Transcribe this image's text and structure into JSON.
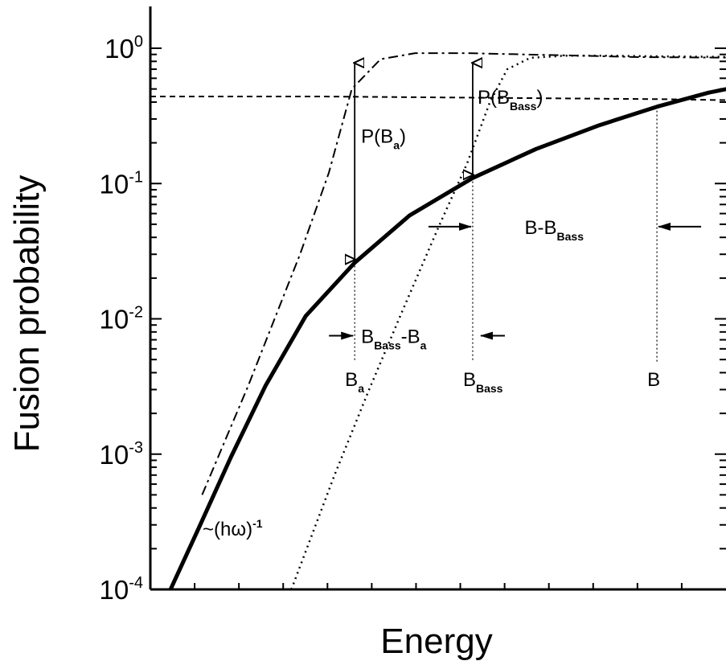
{
  "chart_data": {
    "type": "line",
    "xlabel": "Energy",
    "ylabel": "Fusion probability",
    "x_scale": "arbitrary",
    "y_scale": "log",
    "ylim": [
      0.0001,
      1
    ],
    "xlim": [
      0,
      100
    ],
    "grid": false,
    "y_ticks": [
      {
        "base": "10",
        "exp": "-4",
        "value": 0.0001
      },
      {
        "base": "10",
        "exp": "-3",
        "value": 0.001
      },
      {
        "base": "10",
        "exp": "-2",
        "value": 0.01
      },
      {
        "base": "10",
        "exp": "-1",
        "value": 0.1
      },
      {
        "base": "10",
        "exp": "0",
        "value": 1
      }
    ],
    "series": [
      {
        "style": "solid",
        "x": [
          3.5,
          8.5,
          14,
          20,
          27,
          35.5,
          45,
          56,
          67,
          78,
          88,
          97,
          105
        ],
        "y": [
          0.0001,
          0.00029,
          0.00095,
          0.0032,
          0.0105,
          0.026,
          0.058,
          0.11,
          0.18,
          0.27,
          0.37,
          0.47,
          0.55
        ]
      },
      {
        "style": "dash-dot",
        "x": [
          9,
          17,
          26,
          31,
          35,
          40,
          46,
          55,
          65,
          75,
          85,
          105
        ],
        "y": [
          0.0005,
          0.0032,
          0.03,
          0.12,
          0.5,
          0.83,
          0.92,
          0.92,
          0.9,
          0.88,
          0.86,
          0.85
        ]
      },
      {
        "style": "dotted",
        "x": [
          24.5,
          32,
          38,
          44,
          50,
          55,
          59,
          62,
          66,
          72,
          80,
          90,
          105
        ],
        "y": [
          0.0001,
          0.0007,
          0.003,
          0.012,
          0.047,
          0.14,
          0.4,
          0.7,
          0.85,
          0.88,
          0.88,
          0.87,
          0.86
        ]
      },
      {
        "style": "dashed",
        "x": [
          0,
          30,
          60,
          90,
          105
        ],
        "y": [
          0.44,
          0.44,
          0.43,
          0.42,
          0.41
        ]
      }
    ],
    "markers": [
      {
        "base": "B",
        "sub": "a",
        "x": 35.5
      },
      {
        "base": "B",
        "sub": "Bass",
        "x": 56
      },
      {
        "base": "B",
        "sub": "",
        "x": 88
      }
    ],
    "annotations": {
      "p_ba": {
        "pre": "P(B",
        "sub": "a",
        "post": ")"
      },
      "p_bbass": {
        "pre": "P(B",
        "sub": "Bass",
        "post": ")"
      },
      "b_minus_bbass": {
        "pre": "B-B",
        "sub": "Bass",
        "post": ""
      },
      "bbass_minus_ba": {
        "pre": "B",
        "sub": "Bass",
        "mid": "-B",
        "sub2": "a"
      },
      "slope": {
        "pre": "~(hω)",
        "sup": "-1"
      }
    }
  }
}
